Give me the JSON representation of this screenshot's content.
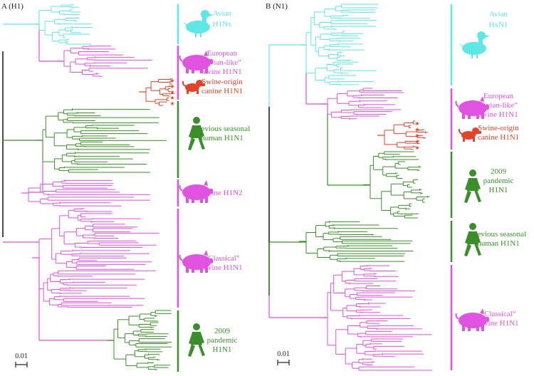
{
  "colors": {
    "avian": "#5FE6E6",
    "swine": "#E052E0",
    "human": "#3A8F2A",
    "canine": "#E0452A",
    "root": "#222222"
  },
  "panels": [
    {
      "id": "H1",
      "title": "A (H1)",
      "scale_label": "0.01",
      "clades": [
        {
          "key": "avian",
          "host": "duck",
          "lines": [
            "Avian",
            "H1Nx"
          ]
        },
        {
          "key": "swine",
          "host": "pig",
          "lines": [
            "European",
            "“avian-like”",
            "swine H1N1"
          ]
        },
        {
          "key": "canine",
          "host": "dog",
          "lines": [
            "Swine-origin",
            "canine H1N1"
          ]
        },
        {
          "key": "human",
          "host": "human",
          "lines": [
            "Previous seasonal",
            "human H1N1"
          ]
        },
        {
          "key": "swine",
          "host": "pig",
          "lines": [
            "Swine H1N2"
          ]
        },
        {
          "key": "swine",
          "host": "pig",
          "lines": [
            "“Classical”",
            "Swine H1N1"
          ]
        },
        {
          "key": "human",
          "host": "human",
          "lines": [
            "2009",
            "pandemic",
            "H1N1"
          ]
        }
      ]
    },
    {
      "id": "N1",
      "title": "B (N1)",
      "scale_label": "0.01",
      "clades": [
        {
          "key": "avian",
          "host": "duck",
          "lines": [
            "Avian",
            "HxN1"
          ]
        },
        {
          "key": "swine",
          "host": "pig",
          "lines": [
            "European",
            "“avian-like”",
            "swine H1N1"
          ]
        },
        {
          "key": "canine",
          "host": "dog",
          "lines": [
            "Swine-origin",
            "canine H1N1"
          ]
        },
        {
          "key": "human",
          "host": "human",
          "lines": [
            "2009",
            "pandemic",
            "H1N1"
          ]
        },
        {
          "key": "human",
          "host": "human",
          "lines": [
            "Previous seasonal",
            "human H1N1"
          ]
        },
        {
          "key": "swine",
          "host": "pig",
          "lines": [
            "“Classical“",
            "Swine H1N1"
          ]
        }
      ]
    }
  ]
}
